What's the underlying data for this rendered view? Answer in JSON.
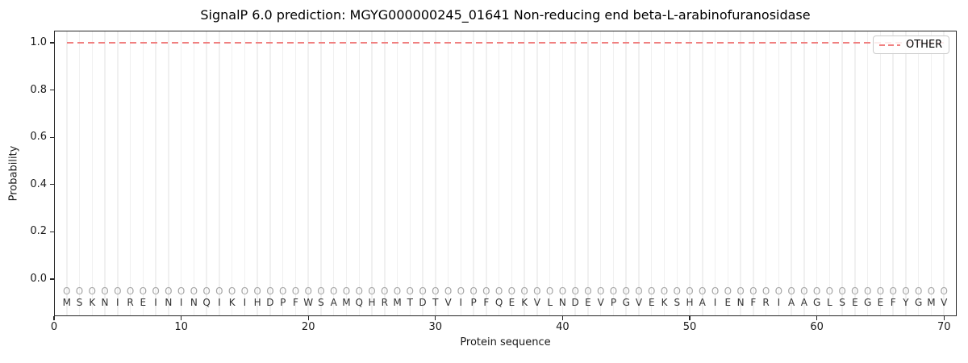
{
  "chart_data": {
    "type": "line",
    "title": "SignalP 6.0 prediction: MGYG000000245_01641 Non-reducing end beta-L-arabinofuranosidase",
    "xlabel": "Protein sequence",
    "ylabel": "Probability",
    "xlim": [
      0,
      71
    ],
    "ylim": [
      -0.157,
      1.051
    ],
    "x_ticks": [
      0,
      10,
      20,
      30,
      40,
      50,
      60,
      70
    ],
    "y_ticks": [
      0.0,
      0.2,
      0.4,
      0.6,
      0.8,
      1.0
    ],
    "y_tick_labels": [
      "0.0",
      "0.2",
      "0.4",
      "0.6",
      "0.8",
      "1.0"
    ],
    "grid": {
      "vertical_per_residue": true,
      "horizontal": false,
      "color": "#f0f0f0"
    },
    "series": [
      {
        "name": "OTHER",
        "style": "dashed",
        "color": "#f08080",
        "y_value": 1.0,
        "x_start": 1,
        "x_end": 70
      }
    ],
    "legend": {
      "position": "upper right",
      "entries": [
        {
          "label": "OTHER",
          "line_style": "dashed",
          "color": "#f08080"
        }
      ]
    },
    "sequence": "MSKNIREININQIKIHDPFWSAMQHRMTDTVIPFQEKVLNDEVPGVEKSHAIENFRIAAGLSEGEFYGMV",
    "per_residue_prediction": "OOOOOOOOOOOOOOOOOOOOOOOOOOOOOOOOOOOOOOOOOOOOOOOOOOOOOOOOOOOOOOOOOOOOOO",
    "marker_row_y": -0.05,
    "sequence_row_y": -0.1,
    "colors": {
      "spine": "#262626",
      "grid": "#f0f0f0",
      "other_line": "#f08080",
      "marker": "#a6a6a6",
      "letter": "#333333"
    }
  }
}
